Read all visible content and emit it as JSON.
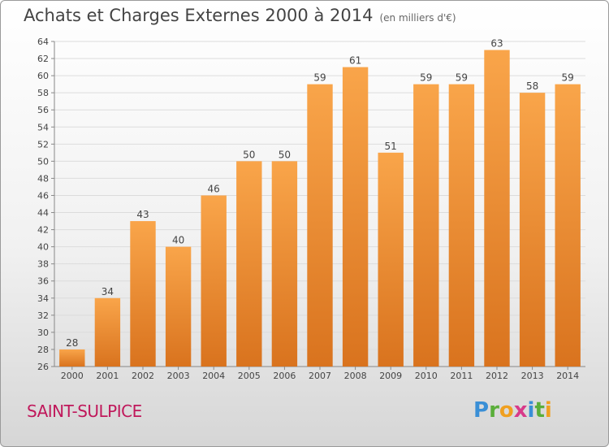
{
  "title": "Achats et Charges Externes 2000 à 2014",
  "subtitle": "(en milliers d'€)",
  "commune": "SAINT-SULPICE",
  "logo": {
    "letters": [
      "P",
      "r",
      "o",
      "x",
      "i",
      "t",
      "i"
    ],
    "colors": [
      "#3a8fd6",
      "#5aae3a",
      "#f0a020",
      "#d83a8a",
      "#3a8fd6",
      "#5aae3a",
      "#f0a020"
    ]
  },
  "colors": {
    "bar_light": "#f9a54a",
    "bar_dark": "#d9731e",
    "grid": "#dcdcdc"
  },
  "chart_data": {
    "type": "bar",
    "categories": [
      "2000",
      "2001",
      "2002",
      "2003",
      "2004",
      "2005",
      "2006",
      "2007",
      "2008",
      "2009",
      "2010",
      "2011",
      "2012",
      "2013",
      "2014"
    ],
    "values": [
      28,
      34,
      43,
      40,
      46,
      50,
      50,
      59,
      61,
      51,
      59,
      59,
      63,
      58,
      59
    ],
    "data_labels": [
      "28",
      "34",
      "43",
      "40",
      "46",
      "50",
      "50",
      "59",
      "61",
      "51",
      "59",
      "59",
      "63",
      "58",
      "59"
    ],
    "ylim": [
      26,
      64
    ],
    "yticks": [
      "26",
      "28",
      "30",
      "32",
      "34",
      "36",
      "38",
      "40",
      "42",
      "44",
      "46",
      "48",
      "50",
      "52",
      "54",
      "56",
      "58",
      "60",
      "62",
      "64"
    ],
    "grid": true,
    "legend": "none"
  }
}
